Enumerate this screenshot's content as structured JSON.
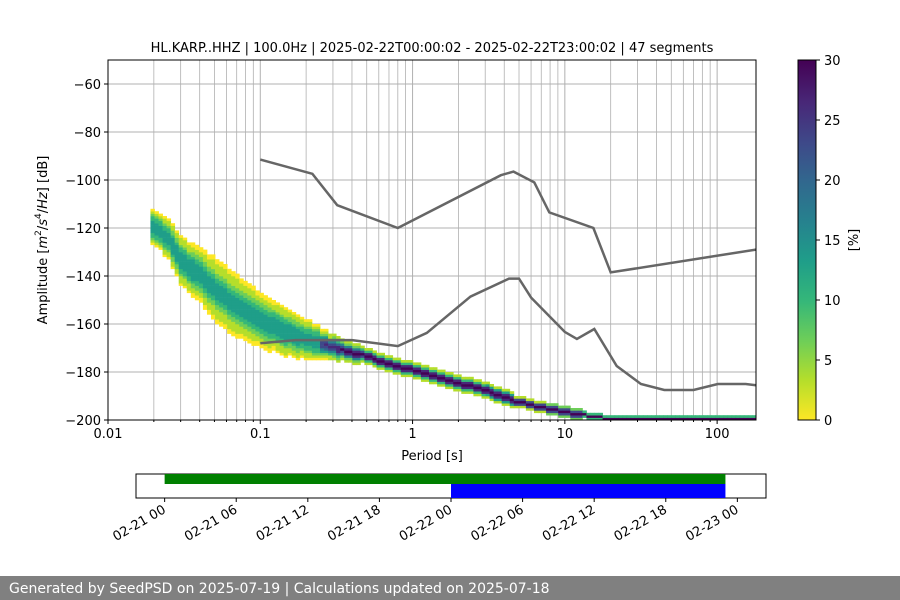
{
  "chart_data": {
    "type": "heatmap",
    "title": "HL.KARP..HHZ | 100.0Hz | 2025-02-22T00:00:02 - 2025-02-22T23:00:02 | 47 segments",
    "xlabel": "Period [s]",
    "ylabel_parts": [
      "Amplitude [",
      "m",
      "2",
      "/",
      "s",
      "4",
      "/",
      "Hz",
      "] [dB]"
    ],
    "xscale": "log",
    "xlim": [
      0.01,
      180
    ],
    "ylim": [
      -200,
      -50
    ],
    "x_ticks": [
      {
        "value": 0.01,
        "label": "0.01"
      },
      {
        "value": 0.1,
        "label": "0.1"
      },
      {
        "value": 1,
        "label": "1"
      },
      {
        "value": 10,
        "label": "10"
      },
      {
        "value": 100,
        "label": "100"
      }
    ],
    "y_ticks": [
      {
        "value": -60,
        "label": "−60"
      },
      {
        "value": -80,
        "label": "−80"
      },
      {
        "value": -100,
        "label": "−100"
      },
      {
        "value": -120,
        "label": "−120"
      },
      {
        "value": -140,
        "label": "−140"
      },
      {
        "value": -160,
        "label": "−160"
      },
      {
        "value": -180,
        "label": "−180"
      },
      {
        "value": -200,
        "label": "−200"
      }
    ],
    "grid": true,
    "noise_models": [
      {
        "x": [
          0.1,
          0.22,
          0.32,
          0.8,
          3.8,
          4.6,
          6.3,
          7.9,
          15.4,
          20,
          180
        ],
        "y": [
          -91.5,
          -97.4,
          -110.5,
          -120,
          -98,
          -96.5,
          -101,
          -113.5,
          -120,
          -138.5,
          -129
        ]
      },
      {
        "x": [
          0.1,
          0.17,
          0.4,
          0.8,
          1.24,
          2.4,
          4.3,
          5,
          6,
          10,
          12,
          15.6,
          21.9,
          31.6,
          45,
          70,
          101,
          154,
          180
        ],
        "y": [
          -168,
          -166.7,
          -166.7,
          -169.2,
          -163.7,
          -148.6,
          -141.1,
          -141.1,
          -149,
          -163.3,
          -166.2,
          -162.1,
          -177.5,
          -185,
          -187.5,
          -187.5,
          -185,
          -185,
          -185.5
        ]
      }
    ],
    "psd_mode": {
      "x": [
        0.019,
        0.025,
        0.03,
        0.04,
        0.05,
        0.07,
        0.1,
        0.15,
        0.2,
        0.3,
        0.5,
        0.8,
        1.2,
        2,
        3,
        5,
        8,
        12,
        20,
        50,
        100,
        180
      ],
      "y": [
        -119,
        -125,
        -134,
        -140,
        -146,
        -153,
        -159,
        -164,
        -167,
        -170,
        -174,
        -178,
        -181,
        -185,
        -188,
        -193,
        -196,
        -198,
        -200,
        -200,
        -200,
        -200
      ],
      "spread": [
        4,
        5,
        6,
        7,
        8,
        8,
        7,
        6,
        5,
        3,
        2,
        2,
        2,
        2,
        2,
        1.5,
        1.2,
        1,
        0.6,
        0.5,
        0.5,
        0.5
      ]
    },
    "colorbar": {
      "label": "[%]",
      "min": 0,
      "max": 30,
      "ticks": [
        0,
        5,
        10,
        15,
        20,
        25,
        30
      ]
    },
    "timeline": {
      "tick_labels": [
        "02-21 00",
        "02-21 06",
        "02-21 12",
        "02-21 18",
        "02-22 00",
        "02-22 06",
        "02-22 12",
        "02-22 18",
        "02-23 00"
      ],
      "tick_hours": [
        0,
        6,
        12,
        18,
        24,
        30,
        36,
        42,
        48
      ],
      "range_hours": [
        -2.4,
        50.4
      ],
      "available_data": {
        "start_hour": 0,
        "end_hour": 47,
        "color": "#008000"
      },
      "selected_data": {
        "start_hour": 24,
        "end_hour": 47,
        "color": "#0000ff"
      }
    }
  },
  "colors": {
    "noise_model": "#666666",
    "grid": "#b0b0b0",
    "viridis_r": [
      "#fde725",
      "#b5de2b",
      "#6ece58",
      "#35b779",
      "#1f9e89",
      "#26828e",
      "#31688e",
      "#3e4989",
      "#482878",
      "#440154"
    ]
  },
  "footer": {
    "text": "Generated by SeedPSD on 2025-07-19 | Calculations updated on 2025-07-18"
  }
}
